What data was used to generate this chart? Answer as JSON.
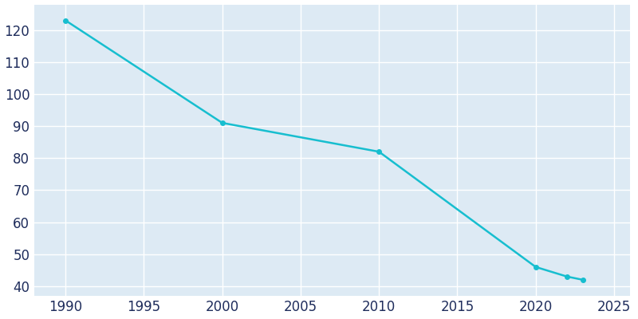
{
  "years": [
    1990,
    2000,
    2010,
    2020,
    2022,
    2023
  ],
  "population": [
    123,
    91,
    82,
    46,
    43,
    42
  ],
  "line_color": "#17becf",
  "marker_color": "#17becf",
  "background_color": "#ffffff",
  "plot_background_color": "#ddeaf4",
  "grid_color": "#ffffff",
  "tick_label_color": "#1f2d5c",
  "ylim": [
    37,
    128
  ],
  "xlim": [
    1988,
    2026
  ],
  "yticks": [
    40,
    50,
    60,
    70,
    80,
    90,
    100,
    110,
    120
  ],
  "xticks": [
    1990,
    1995,
    2000,
    2005,
    2010,
    2015,
    2020,
    2025
  ],
  "line_width": 1.8,
  "marker_size": 4,
  "tick_fontsize": 12
}
